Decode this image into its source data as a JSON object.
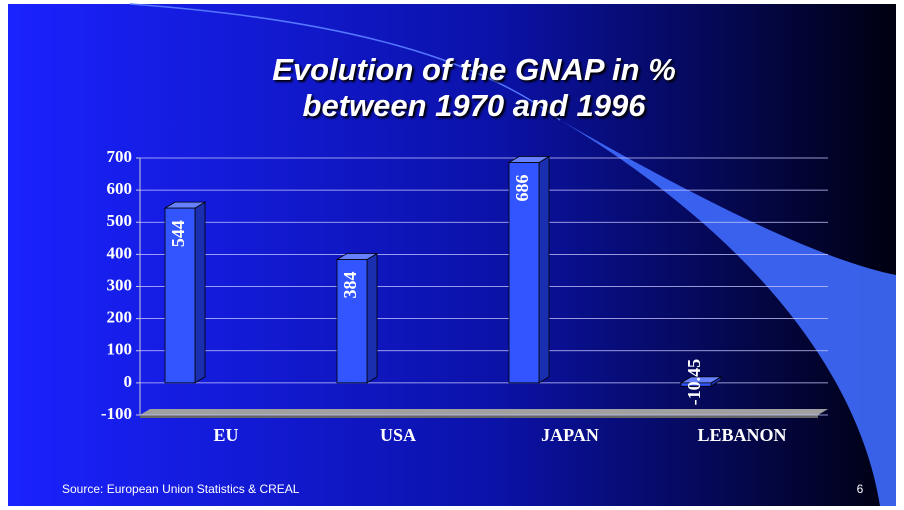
{
  "chart_data": {
    "type": "bar3d",
    "title": [
      "Evolution of the GNAP  in %",
      "between 1970 and 1996"
    ],
    "categories": [
      "EU",
      "USA",
      "JAPAN",
      "LEBANON"
    ],
    "values": [
      544,
      384,
      686,
      -10.45
    ],
    "color": "#3355ff",
    "ylim": [
      -100,
      700
    ],
    "yticks": [
      -100,
      0,
      100,
      200,
      300,
      400,
      500,
      600,
      700
    ],
    "grid": true,
    "source": "Source: European Union Statistics & CREAL"
  },
  "slide_number": "6"
}
